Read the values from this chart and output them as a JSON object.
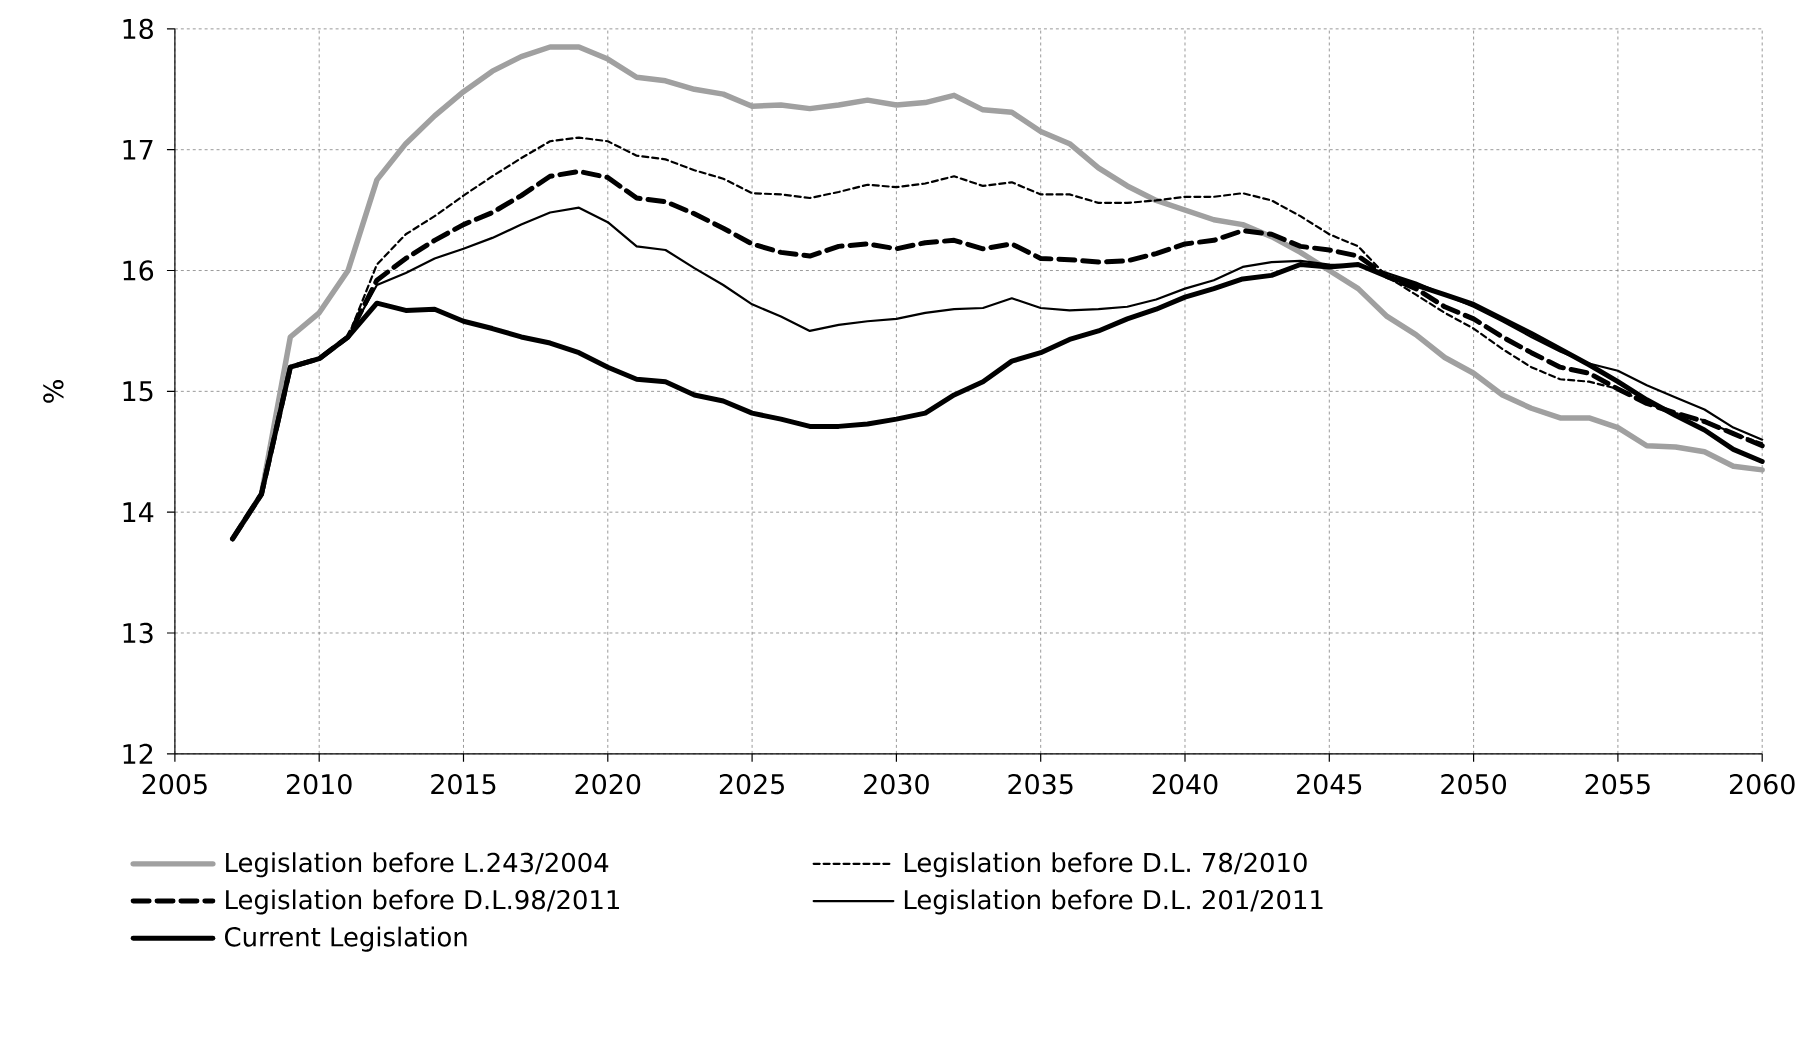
{
  "chart_data": {
    "type": "line",
    "ylabel": "%",
    "x": [
      2007,
      2008,
      2009,
      2010,
      2011,
      2012,
      2013,
      2014,
      2015,
      2016,
      2017,
      2018,
      2019,
      2020,
      2021,
      2022,
      2023,
      2024,
      2025,
      2026,
      2027,
      2028,
      2029,
      2030,
      2031,
      2032,
      2033,
      2034,
      2035,
      2036,
      2037,
      2038,
      2039,
      2040,
      2041,
      2042,
      2043,
      2044,
      2045,
      2046,
      2047,
      2048,
      2049,
      2050,
      2051,
      2052,
      2053,
      2054,
      2055,
      2056,
      2057,
      2058,
      2059,
      2060
    ],
    "series": [
      {
        "name": "Legislation before L.243/2004",
        "color": "#a0a0a0",
        "line_style": "solid",
        "values": [
          13.78,
          14.15,
          15.45,
          15.65,
          16.0,
          16.75,
          17.05,
          17.28,
          17.48,
          17.65,
          17.77,
          17.85,
          17.85,
          17.75,
          17.6,
          17.57,
          17.5,
          17.46,
          17.36,
          17.37,
          17.34,
          17.37,
          17.41,
          17.37,
          17.39,
          17.45,
          17.33,
          17.31,
          17.15,
          17.05,
          16.85,
          16.7,
          16.58,
          16.5,
          16.42,
          16.38,
          16.28,
          16.15,
          16.0,
          15.85,
          15.62,
          15.47,
          15.28,
          15.15,
          14.97,
          14.86,
          14.78,
          14.78,
          14.7,
          14.55,
          14.54,
          14.5,
          14.38,
          14.35
        ]
      },
      {
        "name": "Legislation before D.L. 78/2010",
        "color": "#000000",
        "line_style": "dashed",
        "values": [
          13.78,
          14.15,
          15.2,
          15.27,
          15.45,
          16.05,
          16.3,
          16.45,
          16.62,
          16.78,
          16.93,
          17.07,
          17.1,
          17.07,
          16.95,
          16.92,
          16.83,
          16.76,
          16.64,
          16.63,
          16.6,
          16.65,
          16.71,
          16.69,
          16.72,
          16.78,
          16.7,
          16.73,
          16.63,
          16.63,
          16.56,
          16.56,
          16.58,
          16.61,
          16.61,
          16.64,
          16.58,
          16.45,
          16.3,
          16.2,
          15.95,
          15.8,
          15.65,
          15.52,
          15.35,
          15.2,
          15.1,
          15.08,
          15.02,
          14.9,
          14.82,
          14.76,
          14.65,
          14.57
        ]
      },
      {
        "name": "Legislation before D.L.98/2011",
        "color": "#000000",
        "line_style": "dashed",
        "values": [
          13.78,
          14.15,
          15.2,
          15.27,
          15.45,
          15.92,
          16.1,
          16.25,
          16.38,
          16.48,
          16.62,
          16.78,
          16.82,
          16.77,
          16.6,
          16.57,
          16.47,
          16.35,
          16.22,
          16.15,
          16.12,
          16.2,
          16.22,
          16.18,
          16.23,
          16.25,
          16.18,
          16.22,
          16.1,
          16.09,
          16.07,
          16.08,
          16.14,
          16.22,
          16.25,
          16.33,
          16.3,
          16.2,
          16.17,
          16.12,
          15.95,
          15.85,
          15.7,
          15.6,
          15.45,
          15.32,
          15.2,
          15.15,
          15.02,
          14.9,
          14.82,
          14.75,
          14.65,
          14.55
        ]
      },
      {
        "name": "Legislation before D.L. 201/2011",
        "color": "#000000",
        "line_style": "solid",
        "values": [
          13.78,
          14.15,
          15.2,
          15.27,
          15.45,
          15.88,
          15.98,
          16.1,
          16.18,
          16.27,
          16.38,
          16.48,
          16.52,
          16.4,
          16.2,
          16.17,
          16.02,
          15.88,
          15.72,
          15.62,
          15.5,
          15.55,
          15.58,
          15.6,
          15.65,
          15.68,
          15.69,
          15.77,
          15.69,
          15.67,
          15.68,
          15.7,
          15.76,
          15.85,
          15.92,
          16.03,
          16.07,
          16.08,
          16.05,
          16.04,
          15.98,
          15.9,
          15.8,
          15.7,
          15.58,
          15.45,
          15.33,
          15.23,
          15.17,
          15.05,
          14.95,
          14.85,
          14.7,
          14.6
        ]
      },
      {
        "name": "Current Legislation",
        "color": "#000000",
        "line_style": "solid",
        "values": [
          13.78,
          14.15,
          15.2,
          15.27,
          15.45,
          15.73,
          15.67,
          15.68,
          15.58,
          15.52,
          15.45,
          15.4,
          15.32,
          15.2,
          15.1,
          15.08,
          14.97,
          14.92,
          14.82,
          14.77,
          14.71,
          14.71,
          14.73,
          14.77,
          14.82,
          14.97,
          15.08,
          15.25,
          15.32,
          15.43,
          15.5,
          15.6,
          15.68,
          15.78,
          15.85,
          15.93,
          15.96,
          16.05,
          16.03,
          16.05,
          15.95,
          15.88,
          15.8,
          15.72,
          15.6,
          15.48,
          15.35,
          15.22,
          15.08,
          14.93,
          14.8,
          14.68,
          14.52,
          14.42
        ]
      }
    ],
    "xlim": [
      2005,
      2060
    ],
    "xticks": [
      2005,
      2010,
      2015,
      2020,
      2025,
      2030,
      2035,
      2040,
      2045,
      2050,
      2055,
      2060
    ],
    "ylim": [
      12,
      18
    ],
    "yticks": [
      12,
      13,
      14,
      15,
      16,
      17,
      18
    ],
    "grid": true,
    "legend": "bottom",
    "marker": "none"
  }
}
